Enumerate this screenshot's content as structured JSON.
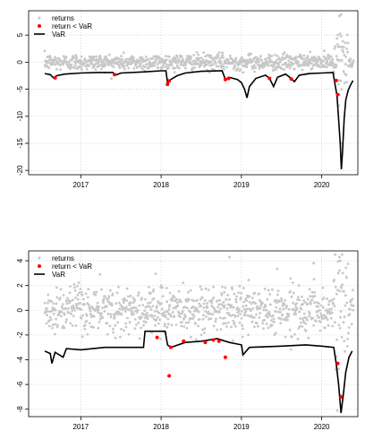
{
  "chart_data": [
    {
      "type": "scatter",
      "xlim": [
        2016.35,
        2020.45
      ],
      "ylim": [
        -20.8,
        9.5
      ],
      "x_ticks": [
        2017,
        2018,
        2019,
        2020
      ],
      "x_tick_labels": [
        "2017",
        "2018",
        "2019",
        "2020"
      ],
      "y_ticks": [
        5,
        0,
        -5,
        -10,
        -15,
        -20
      ],
      "y_tick_labels": [
        "5",
        "0",
        "-5",
        "-10",
        "-15",
        "-20"
      ],
      "grid": true,
      "legend_position": "top-left",
      "legend": [
        "returns",
        "return < VaR",
        "VaR"
      ],
      "series": [
        {
          "name": "returns",
          "color": "#c8c8c8",
          "marker": "point",
          "note_values": "daily returns, mostly within -3 to 3, extremes near -15 and +8.5 in March 2020"
        },
        {
          "name": "return < VaR",
          "color": "#ff0000",
          "marker": "point",
          "points": [
            [
              2016.68,
              -2.9
            ],
            [
              2017.42,
              -2.3
            ],
            [
              2018.08,
              -4.1
            ],
            [
              2018.1,
              -3.5
            ],
            [
              2018.8,
              -3.2
            ],
            [
              2018.84,
              -3.0
            ],
            [
              2019.35,
              -3.0
            ],
            [
              2019.62,
              -3.1
            ],
            [
              2020.18,
              -3.4
            ],
            [
              2020.2,
              -6.0
            ]
          ]
        },
        {
          "name": "VaR",
          "color": "#000000",
          "line_width": 1.6,
          "points": [
            [
              2016.55,
              -2.1
            ],
            [
              2016.62,
              -2.3
            ],
            [
              2016.66,
              -2.9
            ],
            [
              2016.7,
              -2.5
            ],
            [
              2016.8,
              -2.2
            ],
            [
              2017.0,
              -2.0
            ],
            [
              2017.2,
              -1.9
            ],
            [
              2017.4,
              -1.9
            ],
            [
              2017.43,
              -2.4
            ],
            [
              2017.5,
              -2.0
            ],
            [
              2017.8,
              -1.8
            ],
            [
              2018.0,
              -1.6
            ],
            [
              2018.06,
              -1.6
            ],
            [
              2018.08,
              -3.9
            ],
            [
              2018.12,
              -3.2
            ],
            [
              2018.2,
              -2.5
            ],
            [
              2018.3,
              -2.0
            ],
            [
              2018.5,
              -1.7
            ],
            [
              2018.76,
              -1.6
            ],
            [
              2018.8,
              -3.2
            ],
            [
              2018.85,
              -2.8
            ],
            [
              2018.95,
              -3.2
            ],
            [
              2019.0,
              -3.8
            ],
            [
              2019.04,
              -5.0
            ],
            [
              2019.07,
              -6.6
            ],
            [
              2019.1,
              -4.5
            ],
            [
              2019.18,
              -3.0
            ],
            [
              2019.3,
              -2.4
            ],
            [
              2019.35,
              -3.0
            ],
            [
              2019.4,
              -4.5
            ],
            [
              2019.45,
              -2.8
            ],
            [
              2019.55,
              -2.2
            ],
            [
              2019.62,
              -3.0
            ],
            [
              2019.66,
              -3.6
            ],
            [
              2019.72,
              -2.4
            ],
            [
              2019.85,
              -2.1
            ],
            [
              2020.0,
              -2.0
            ],
            [
              2020.14,
              -1.9
            ],
            [
              2020.16,
              -3.6
            ],
            [
              2020.19,
              -6.2
            ],
            [
              2020.21,
              -10.5
            ],
            [
              2020.23,
              -15.0
            ],
            [
              2020.245,
              -19.8
            ],
            [
              2020.26,
              -16.5
            ],
            [
              2020.28,
              -10.5
            ],
            [
              2020.3,
              -7.0
            ],
            [
              2020.33,
              -5.2
            ],
            [
              2020.36,
              -4.2
            ],
            [
              2020.39,
              -3.4
            ]
          ]
        }
      ]
    },
    {
      "type": "scatter",
      "xlim": [
        2016.35,
        2020.45
      ],
      "ylim": [
        -8.6,
        4.8
      ],
      "x_ticks": [
        2017,
        2018,
        2019,
        2020
      ],
      "x_tick_labels": [
        "2017",
        "2018",
        "2019",
        "2020"
      ],
      "y_ticks": [
        4,
        2,
        0,
        -2,
        -4,
        -6,
        -8
      ],
      "y_tick_labels": [
        "4",
        "2",
        "0",
        "-2",
        "-4",
        "-6",
        "-8"
      ],
      "grid": true,
      "legend_position": "top-left",
      "legend": [
        "returns",
        "return < VaR",
        "VaR"
      ],
      "series": [
        {
          "name": "returns",
          "color": "#c8c8c8",
          "marker": "point",
          "note_values": "daily returns, mostly within -2.5 to 2.5, extremes near -7 and +4.3 in March 2020"
        },
        {
          "name": "return < VaR",
          "color": "#ff0000",
          "marker": "point",
          "points": [
            [
              2017.95,
              -2.2
            ],
            [
              2018.1,
              -5.3
            ],
            [
              2018.12,
              -3.0
            ],
            [
              2018.28,
              -2.5
            ],
            [
              2018.55,
              -2.6
            ],
            [
              2018.65,
              -2.4
            ],
            [
              2018.72,
              -2.5
            ],
            [
              2018.8,
              -3.8
            ],
            [
              2020.2,
              -4.3
            ],
            [
              2020.24,
              -7.0
            ]
          ]
        },
        {
          "name": "VaR",
          "color": "#000000",
          "line_width": 1.6,
          "points": [
            [
              2016.55,
              -3.3
            ],
            [
              2016.62,
              -3.5
            ],
            [
              2016.64,
              -4.3
            ],
            [
              2016.68,
              -3.4
            ],
            [
              2016.78,
              -3.8
            ],
            [
              2016.82,
              -3.1
            ],
            [
              2017.0,
              -3.2
            ],
            [
              2017.3,
              -3.0
            ],
            [
              2017.6,
              -3.0
            ],
            [
              2017.78,
              -3.0
            ],
            [
              2017.8,
              -1.7
            ],
            [
              2018.05,
              -1.7
            ],
            [
              2018.08,
              -2.8
            ],
            [
              2018.12,
              -3.0
            ],
            [
              2018.3,
              -2.6
            ],
            [
              2018.5,
              -2.5
            ],
            [
              2018.7,
              -2.3
            ],
            [
              2018.85,
              -2.6
            ],
            [
              2019.0,
              -2.8
            ],
            [
              2019.02,
              -3.6
            ],
            [
              2019.1,
              -3.0
            ],
            [
              2019.5,
              -2.9
            ],
            [
              2019.8,
              -2.8
            ],
            [
              2020.0,
              -2.9
            ],
            [
              2020.15,
              -3.0
            ],
            [
              2020.18,
              -4.3
            ],
            [
              2020.21,
              -6.0
            ],
            [
              2020.24,
              -8.3
            ],
            [
              2020.27,
              -6.8
            ],
            [
              2020.3,
              -5.0
            ],
            [
              2020.34,
              -3.8
            ],
            [
              2020.38,
              -3.3
            ]
          ]
        }
      ]
    }
  ]
}
